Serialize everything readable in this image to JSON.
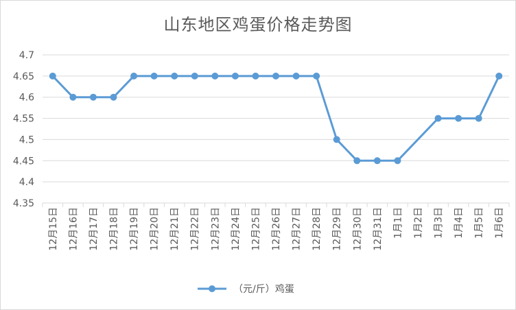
{
  "chart_data": {
    "type": "line",
    "title": "山东地区鸡蛋价格走势图",
    "xlabel": "",
    "ylabel": "",
    "categories": [
      "12月15日",
      "12月16日",
      "12月17日",
      "12月18日",
      "12月19日",
      "12月20日",
      "12月21日",
      "12月22日",
      "12月23日",
      "12月24日",
      "12月25日",
      "12月26日",
      "12月27日",
      "12月28日",
      "12月29日",
      "12月30日",
      "12月31日",
      "1月1日",
      "1月2日",
      "1月3日",
      "1月4日",
      "1月5日",
      "1月6日"
    ],
    "series": [
      {
        "name": "（元/斤）鸡蛋",
        "values": [
          4.65,
          4.6,
          4.6,
          4.6,
          4.65,
          4.65,
          4.65,
          4.65,
          4.65,
          4.65,
          4.65,
          4.65,
          4.65,
          4.65,
          4.5,
          4.45,
          4.45,
          4.45,
          null,
          4.55,
          4.55,
          4.55,
          4.65
        ]
      }
    ],
    "ylim": [
      4.35,
      4.7
    ],
    "yticks": [
      "4.35",
      "4.4",
      "4.45",
      "4.5",
      "4.55",
      "4.6",
      "4.65",
      "4.7"
    ],
    "grid": true,
    "legend": "bottom",
    "colors": {
      "line": "#5b9bd5",
      "grid": "#d9d9d9",
      "text": "#595959"
    }
  }
}
